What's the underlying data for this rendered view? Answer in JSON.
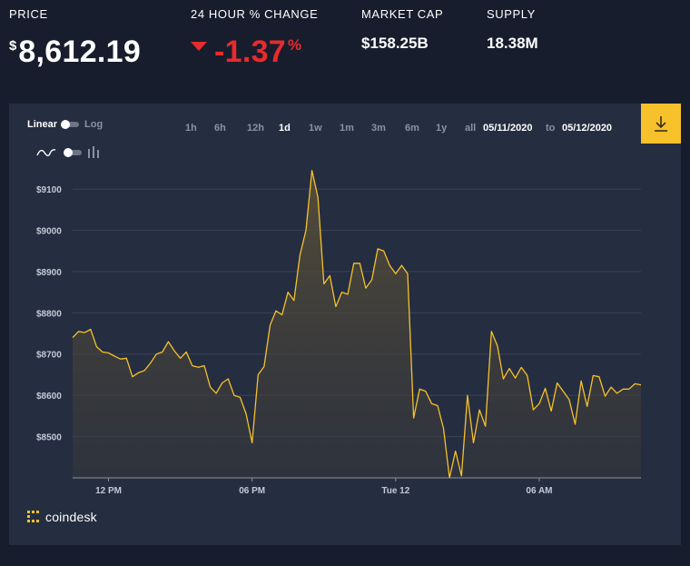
{
  "stats": {
    "price": {
      "label": "PRICE",
      "currency": "$",
      "value": "8,612.19"
    },
    "change": {
      "label": "24 HOUR % CHANGE",
      "value": "-1.37",
      "unit": "%"
    },
    "market_cap": {
      "label": "MARKET CAP",
      "value": "$158.25B"
    },
    "supply": {
      "label": "SUPPLY",
      "value": "18.38M"
    }
  },
  "controls": {
    "scale_linear": "Linear",
    "scale_log": "Log",
    "ranges": [
      "1h",
      "6h",
      "12h",
      "1d",
      "1w",
      "1m",
      "3m",
      "6m",
      "1y",
      "all"
    ],
    "active_range": "1d",
    "date_from": "05/11/2020",
    "date_separator": "to",
    "date_to": "05/12/2020"
  },
  "brand": {
    "name": "coindesk"
  },
  "colors": {
    "line": "#f6c12a",
    "accent": "#f6c12a",
    "negative": "#e82b2b",
    "panel": "#252d40",
    "background": "#171d2d"
  },
  "icons": {
    "download": "download-icon",
    "line_type": "line-chart-icon",
    "bar_type": "bar-chart-icon",
    "brand": "coindesk-logo-icon"
  },
  "chart_data": {
    "type": "area",
    "title": "",
    "xlabel": "",
    "ylabel": "",
    "ylim": [
      8400,
      9175
    ],
    "yticks": [
      8500,
      8600,
      8700,
      8800,
      8900,
      9000,
      9100
    ],
    "ytick_labels": [
      "$8500",
      "$8600",
      "$8700",
      "$8800",
      "$8900",
      "$9000",
      "$9100"
    ],
    "xticks": [
      {
        "label": "12 PM",
        "index": 6
      },
      {
        "label": "06 PM",
        "index": 30
      },
      {
        "label": "Tue 12",
        "index": 54
      },
      {
        "label": "06 AM",
        "index": 78
      }
    ],
    "grid": true,
    "series": [
      {
        "values": [
          8740,
          8755,
          8752,
          8760,
          8718,
          8705,
          8703,
          8695,
          8688,
          8690,
          8645,
          8655,
          8660,
          8678,
          8700,
          8705,
          8730,
          8708,
          8690,
          8705,
          8672,
          8668,
          8672,
          8620,
          8605,
          8630,
          8640,
          8600,
          8595,
          8555,
          8485,
          8650,
          8670,
          8770,
          8805,
          8795,
          8850,
          8830,
          8940,
          9000,
          9145,
          9080,
          8870,
          8890,
          8815,
          8850,
          8845,
          8920,
          8920,
          8860,
          8880,
          8955,
          8950,
          8915,
          8895,
          8915,
          8895,
          8545,
          8615,
          8610,
          8580,
          8575,
          8520,
          8400,
          8465,
          8405,
          8600,
          8485,
          8565,
          8525,
          8755,
          8720,
          8640,
          8665,
          8642,
          8668,
          8648,
          8565,
          8580,
          8617,
          8562,
          8630,
          8610,
          8590,
          8530,
          8635,
          8573,
          8648,
          8645,
          8598,
          8620,
          8605,
          8615,
          8615,
          8628,
          8625
        ]
      }
    ]
  }
}
